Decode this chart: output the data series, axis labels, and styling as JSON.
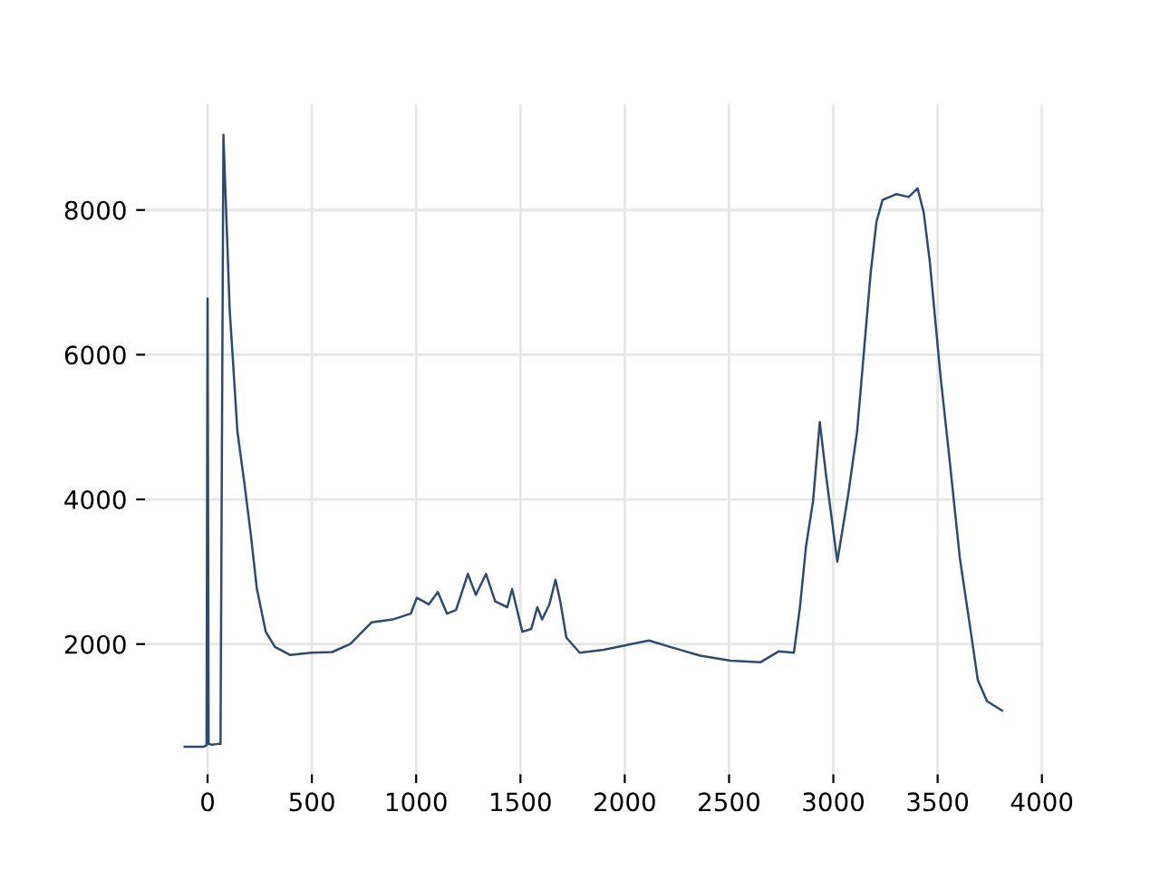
{
  "chart_data": {
    "type": "line",
    "x": [
      -110,
      -20,
      -5,
      0,
      5,
      20,
      50,
      62,
      76,
      106,
      120,
      143,
      178,
      207,
      236,
      279,
      323,
      395,
      496,
      597,
      684,
      786,
      887,
      974,
      1003,
      1061,
      1104,
      1148,
      1191,
      1248,
      1286,
      1335,
      1379,
      1437,
      1460,
      1509,
      1552,
      1581,
      1604,
      1639,
      1668,
      1691,
      1720,
      1784,
      1899,
      2015,
      2116,
      2218,
      2362,
      2507,
      2652,
      2739,
      2811,
      2840,
      2869,
      2903,
      2935,
      2964,
      3019,
      3071,
      3114,
      3144,
      3179,
      3207,
      3236,
      3303,
      3361,
      3404,
      3433,
      3462,
      3514,
      3555,
      3607,
      3659,
      3693,
      3737,
      3809
    ],
    "series": [
      {
        "color": "#2e4a6e",
        "values": [
          580,
          580,
          600,
          6780,
          620,
          610,
          620,
          620,
          9040,
          6620,
          5990,
          4940,
          4190,
          3520,
          2770,
          2170,
          1960,
          1850,
          1880,
          1890,
          2000,
          2300,
          2340,
          2420,
          2640,
          2550,
          2720,
          2420,
          2470,
          2970,
          2680,
          2970,
          2590,
          2510,
          2760,
          2170,
          2210,
          2510,
          2340,
          2550,
          2890,
          2590,
          2090,
          1880,
          1920,
          1990,
          2050,
          1960,
          1840,
          1770,
          1750,
          1900,
          1880,
          2510,
          3350,
          3980,
          5070,
          4360,
          3140,
          4060,
          4940,
          5950,
          7130,
          7840,
          8140,
          8220,
          8180,
          8300,
          7970,
          7300,
          5700,
          4610,
          3180,
          2170,
          1500,
          1210,
          1080
        ]
      }
    ],
    "xlim": [
      -300,
      4010
    ],
    "xticks": [
      0,
      500,
      1000,
      1500,
      2000,
      2500,
      3000,
      3500,
      4000
    ],
    "ylim": [
      200,
      9460
    ],
    "yticks": [
      2000,
      4000,
      6000,
      8000
    ],
    "grid": true
  }
}
